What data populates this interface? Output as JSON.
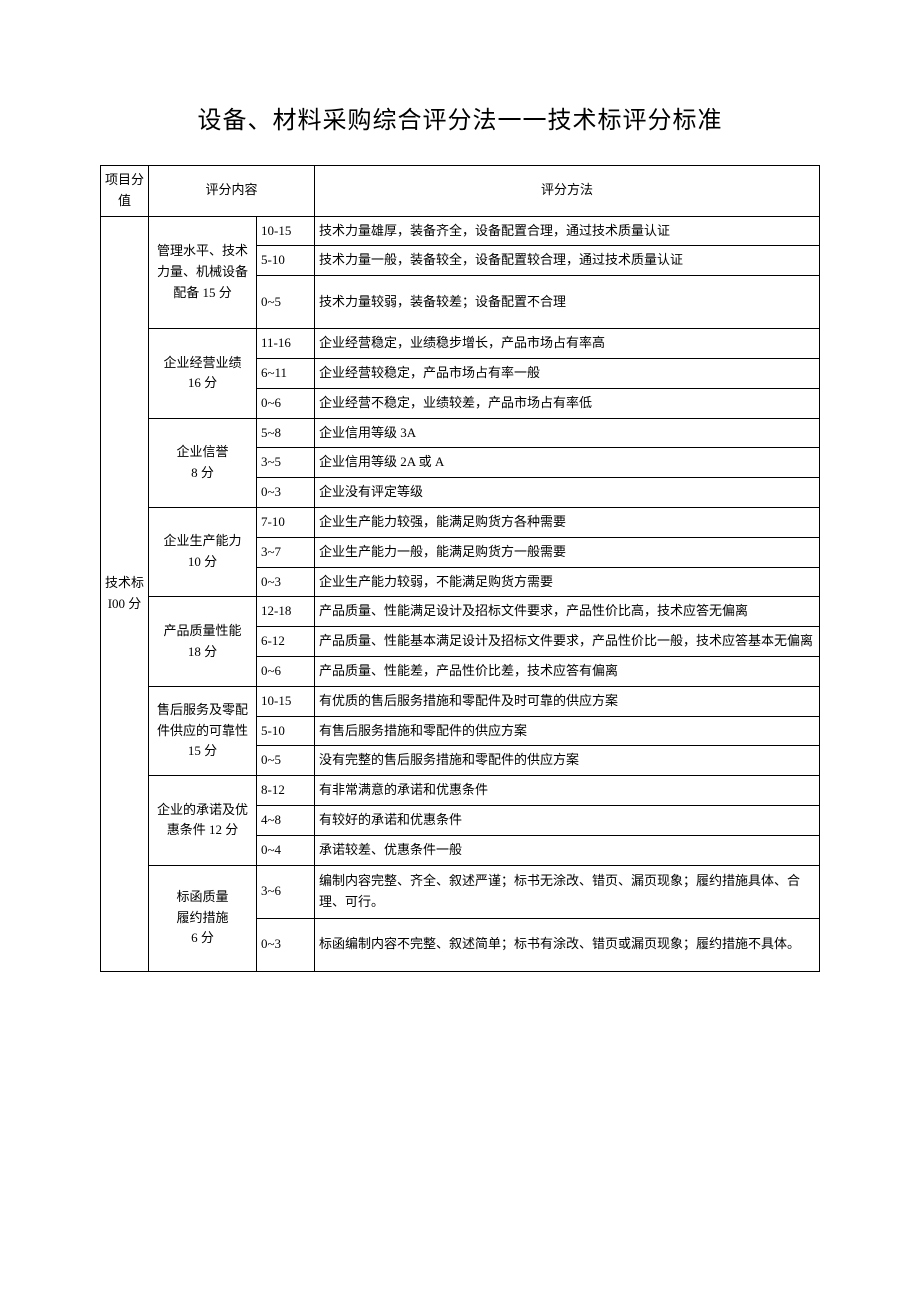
{
  "title": "设备、材料采购综合评分法一一技术标评分标准",
  "header": {
    "col1": "项目分值",
    "col2": "评分内容",
    "col3": "评分方法"
  },
  "category": "技术标\nI00 分",
  "sections": [
    {
      "name": "管理水平、技术力量、机械设备配备 15 分",
      "rows": [
        {
          "range": "10-15",
          "desc": "技术力量雄厚，装备齐全，设备配置合理，通过技术质量认证"
        },
        {
          "range": "5-10",
          "desc": "技术力量一般，装备较全，设备配置较合理，通过技术质量认证"
        },
        {
          "range": "0~5",
          "desc": "技术力量较弱，装备较差；设备配置不合理"
        }
      ]
    },
    {
      "name": "企业经营业绩\n16 分",
      "rows": [
        {
          "range": "11-16",
          "desc": "企业经营稳定，业绩稳步增长，产品市场占有率高"
        },
        {
          "range": "6~11",
          "desc": "企业经营较稳定，产品市场占有率一般"
        },
        {
          "range": "0~6",
          "desc": "企业经营不稳定，业绩较差，产品市场占有率低"
        }
      ]
    },
    {
      "name": "企业信誉\n8 分",
      "rows": [
        {
          "range": "5~8",
          "desc": "企业信用等级 3A"
        },
        {
          "range": "3~5",
          "desc": "企业信用等级 2A 或 A"
        },
        {
          "range": "0~3",
          "desc": "企业没有评定等级"
        }
      ]
    },
    {
      "name": "企业生产能力\n10 分",
      "rows": [
        {
          "range": "7-10",
          "desc": "企业生产能力较强，能满足购货方各种需要"
        },
        {
          "range": "3~7",
          "desc": "企业生产能力一般，能满足购货方一般需要"
        },
        {
          "range": "0~3",
          "desc": "企业生产能力较弱，不能满足购货方需要"
        }
      ]
    },
    {
      "name": "产品质量性能\n18 分",
      "rows": [
        {
          "range": "12-18",
          "desc": "产品质量、性能满足设计及招标文件要求，产品性价比高，技术应答无偏离"
        },
        {
          "range": "6-12",
          "desc": "产品质量、性能基本满足设计及招标文件要求，产品性价比一般，技术应答基本无偏离"
        },
        {
          "range": "0~6",
          "desc": "产品质量、性能差，产品性价比差，技术应答有偏离"
        }
      ]
    },
    {
      "name": "售后服务及零配件供应的可靠性 15 分",
      "rows": [
        {
          "range": "10-15",
          "desc": "有优质的售后服务措施和零配件及时可靠的供应方案"
        },
        {
          "range": "5-10",
          "desc": "有售后服务措施和零配件的供应方案"
        },
        {
          "range": "0~5",
          "desc": "没有完整的售后服务措施和零配件的供应方案"
        }
      ]
    },
    {
      "name": "企业的承诺及优惠条件 12 分",
      "rows": [
        {
          "range": "8-12",
          "desc": "有非常满意的承诺和优惠条件"
        },
        {
          "range": "4~8",
          "desc": "有较好的承诺和优惠条件"
        },
        {
          "range": "0~4",
          "desc": "承诺较差、优惠条件一般"
        }
      ]
    },
    {
      "name": "标函质量\n履约措施\n6 分",
      "rows": [
        {
          "range": "3~6",
          "desc": "编制内容完整、齐全、叙述严谨；标书无涂改、错页、漏页现象；履约措施具体、合理、可行。"
        },
        {
          "range": "0~3",
          "desc": "标函编制内容不完整、叙述简单；标书有涂改、错页或漏页现象；履约措施不具体。"
        }
      ]
    }
  ]
}
